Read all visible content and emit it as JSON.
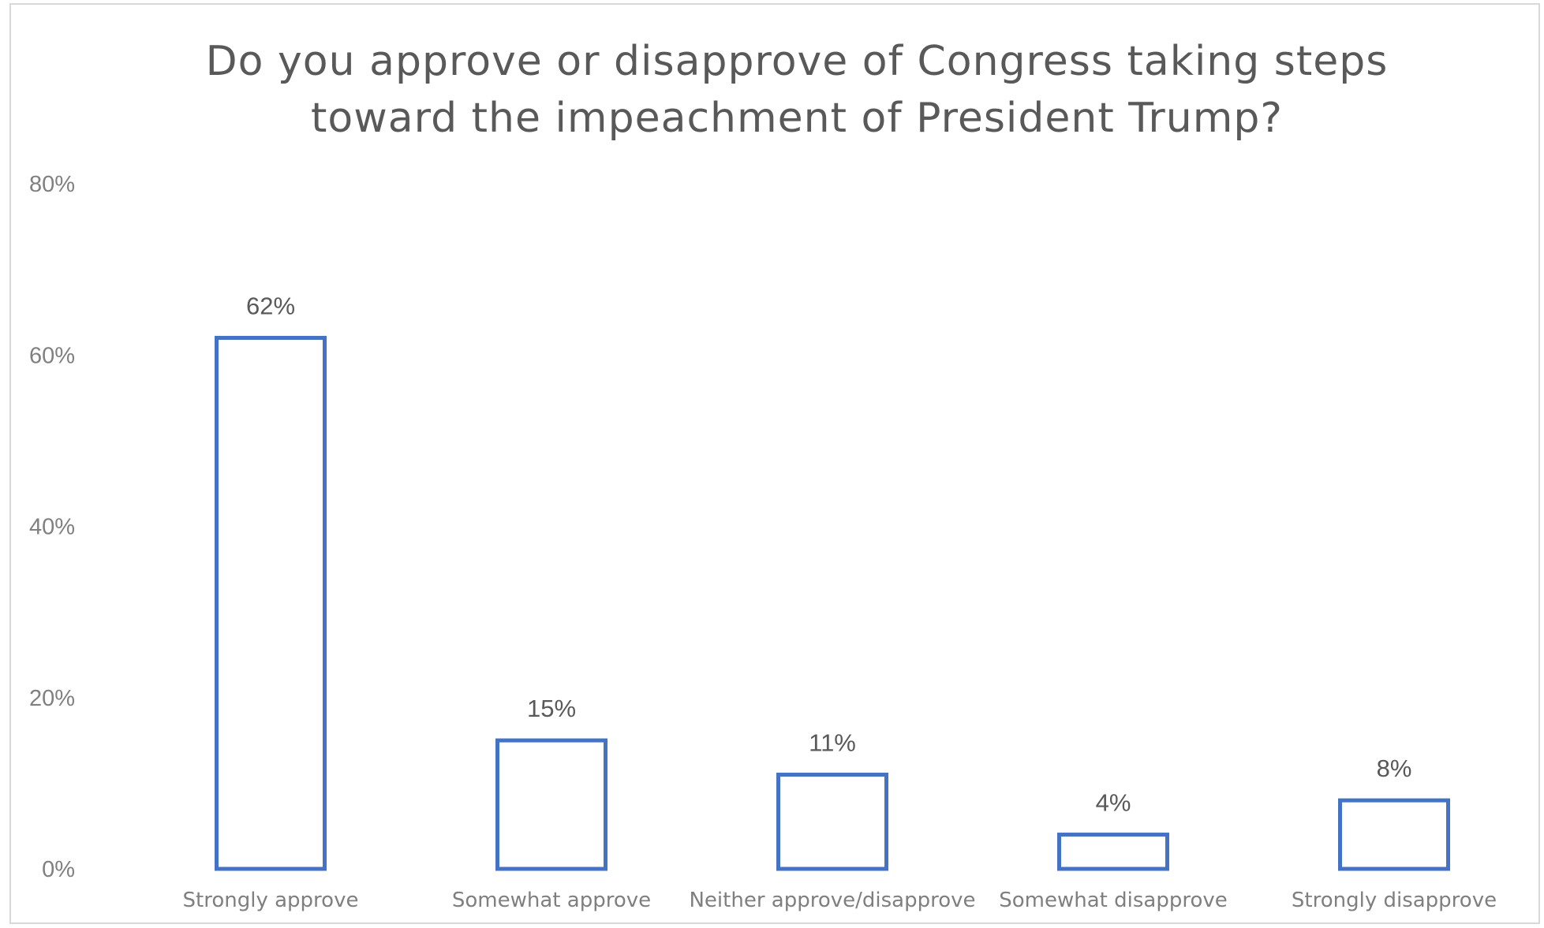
{
  "chart_data": {
    "type": "bar",
    "title_lines": [
      "Do you approve or disapprove of Congress taking steps",
      "toward the impeachment of President Trump?"
    ],
    "categories": [
      "Strongly approve",
      "Somewhat approve",
      "Neither approve/disapprove",
      "Somewhat disapprove",
      "Strongly disapprove"
    ],
    "values": [
      62,
      15,
      11,
      4,
      8
    ],
    "data_labels": [
      "62%",
      "15%",
      "11%",
      "4%",
      "8%"
    ],
    "y_ticks": [
      0,
      20,
      40,
      60,
      80
    ],
    "y_tick_labels": [
      "0%",
      "20%",
      "40%",
      "60%",
      "80%"
    ],
    "ylim": [
      0,
      80
    ],
    "grid": false,
    "legend": "none",
    "bar_fill": "#ffffff",
    "bar_stroke": "#4472c4"
  }
}
